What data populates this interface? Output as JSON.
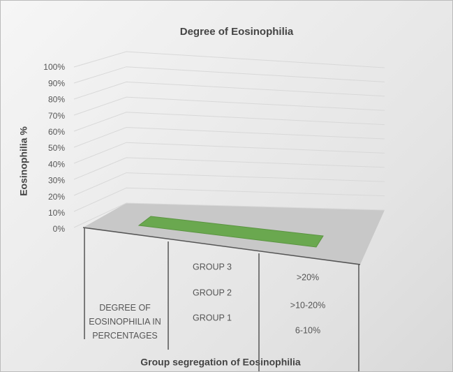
{
  "chart_data": {
    "type": "bar3d",
    "title": "Degree of Eosinophilia",
    "y_label": "Eosinophilia %",
    "x_label": "Group segregation of Eosinophilia",
    "categories": [
      "DEGREE OF EOSINOPHILIA IN PERCENTAGES"
    ],
    "groups": [
      "GROUP 3",
      "GROUP 2",
      "GROUP 1"
    ],
    "ranges": [
      ">20%",
      ">10-20%",
      "6-10%"
    ],
    "values": [
      0
    ],
    "color": "#6aa84f",
    "ylim": [
      0,
      100
    ],
    "yticks": [
      {
        "value": 0,
        "label": "0%"
      },
      {
        "value": 10,
        "label": "10%"
      },
      {
        "value": 20,
        "label": "20%"
      },
      {
        "value": 30,
        "label": "30%"
      },
      {
        "value": 40,
        "label": "40%"
      },
      {
        "value": 50,
        "label": "50%"
      },
      {
        "value": 60,
        "label": "60%"
      },
      {
        "value": 70,
        "label": "70%"
      },
      {
        "value": 80,
        "label": "80%"
      },
      {
        "value": 90,
        "label": "90%"
      },
      {
        "value": 100,
        "label": "100%"
      }
    ],
    "grid": true
  }
}
